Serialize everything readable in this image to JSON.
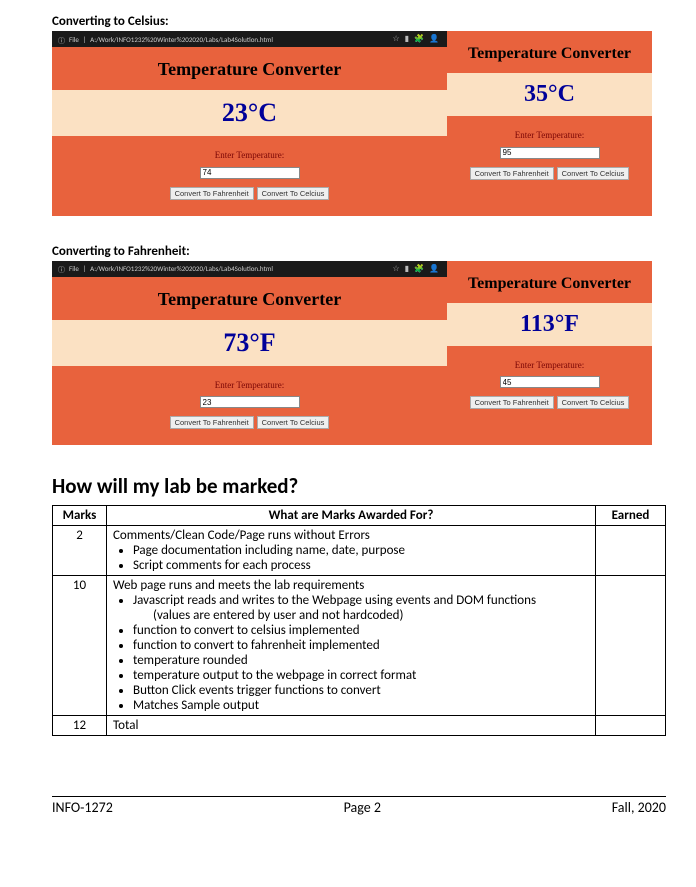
{
  "section1_heading": "Converting to Celsius:",
  "section2_heading": "Converting to Fahrenheit:",
  "titlebar_file_label": "File",
  "titlebar_path": "A:/Work/INFO1232%20Winter%202020/Labs/Lab4Solution.html",
  "converter": {
    "title": "Temperature Converter",
    "input_label": "Enter Temperature:",
    "btn_f": "Convert To Fahrenheit",
    "btn_c": "Convert To Celcius"
  },
  "celsius_shots": {
    "left": {
      "result": "23°C",
      "input_value": "74"
    },
    "right": {
      "result": "35°C",
      "input_value": "95"
    }
  },
  "fahrenheit_shots": {
    "left": {
      "result": "73°F",
      "input_value": "23"
    },
    "right": {
      "result": "113°F",
      "input_value": "45"
    }
  },
  "main_heading": "How will my lab be marked?",
  "rubric": {
    "col_marks": "Marks",
    "col_what": "What are Marks Awarded For?",
    "col_earned": "Earned",
    "rows": [
      {
        "marks": "2",
        "heading": "Comments/Clean Code/Page runs without Errors",
        "bullets": [
          "Page documentation including name, date, purpose",
          "Script comments for each process"
        ]
      },
      {
        "marks": "10",
        "heading": "Web page runs and meets the lab requirements",
        "bullets": [
          "Javascript reads and writes to the Webpage using events and DOM functions",
          "(values are entered by user and not hardcoded)",
          "function to convert to celsius implemented",
          "function to convert to fahrenheit implemented",
          "temperature rounded",
          "temperature output to the webpage in correct format",
          "Button Click events trigger functions to convert",
          "Matches Sample output"
        ]
      },
      {
        "marks": "12",
        "heading": "Total",
        "bullets": []
      }
    ]
  },
  "footer": {
    "left": "INFO-1272",
    "center": "Page 2",
    "right": "Fall, 2020"
  }
}
